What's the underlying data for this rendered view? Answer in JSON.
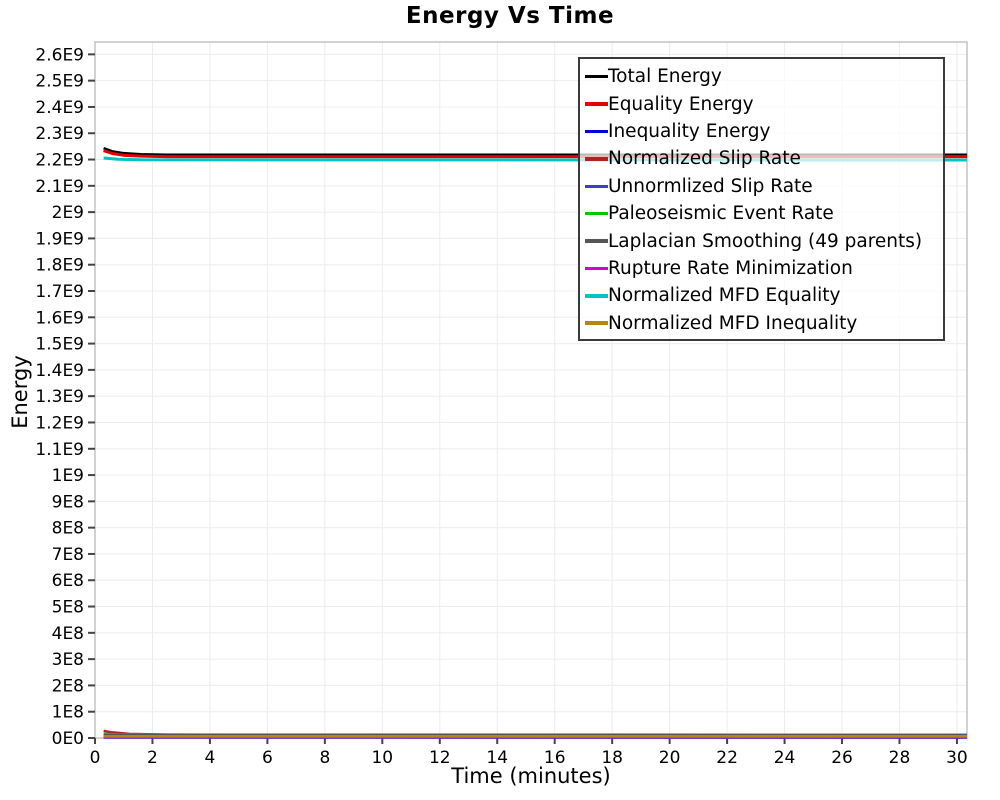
{
  "chart_data": {
    "type": "line",
    "title": "Energy Vs Time",
    "xlabel": "Time (minutes)",
    "ylabel": "Energy",
    "xlim": [
      0,
      30.35
    ],
    "ylim": [
      0,
      2647000000.0
    ],
    "grid": true,
    "legend_position": "inside-top-right",
    "x_ticks": {
      "values": [
        0,
        2,
        4,
        6,
        8,
        10,
        12,
        14,
        16,
        18,
        20,
        22,
        24,
        26,
        28,
        30
      ],
      "labels": [
        "0",
        "2",
        "4",
        "6",
        "8",
        "10",
        "12",
        "14",
        "16",
        "18",
        "20",
        "22",
        "24",
        "26",
        "28",
        "30"
      ]
    },
    "y_ticks": {
      "values": [
        0,
        100000000.0,
        200000000.0,
        300000000.0,
        400000000.0,
        500000000.0,
        600000000.0,
        700000000.0,
        800000000.0,
        900000000.0,
        1000000000.0,
        1100000000.0,
        1200000000.0,
        1300000000.0,
        1400000000.0,
        1500000000.0,
        1600000000.0,
        1700000000.0,
        1800000000.0,
        1900000000.0,
        2000000000.0,
        2100000000.0,
        2200000000.0,
        2300000000.0,
        2400000000.0,
        2500000000.0,
        2600000000.0
      ],
      "labels": [
        "0E0",
        "1E8",
        "2E8",
        "3E8",
        "4E8",
        "5E8",
        "6E8",
        "7E8",
        "8E8",
        "9E8",
        "1E9",
        "1.1E9",
        "1.2E9",
        "1.3E9",
        "1.4E9",
        "1.5E9",
        "1.6E9",
        "1.7E9",
        "1.8E9",
        "1.9E9",
        "2E9",
        "2.1E9",
        "2.2E9",
        "2.3E9",
        "2.4E9",
        "2.5E9",
        "2.6E9"
      ]
    },
    "series": [
      {
        "name": "Total Energy",
        "color": "#000000",
        "width": 2.6,
        "points": [
          [
            0.3,
            2243000000.0
          ],
          [
            0.6,
            2231000000.0
          ],
          [
            1.0,
            2224000000.0
          ],
          [
            1.6,
            2220000000.0
          ],
          [
            2.5,
            2218000000.0
          ],
          [
            4,
            2218000000.0
          ],
          [
            30.35,
            2218000000.0
          ]
        ]
      },
      {
        "name": "Equality Energy",
        "color": "#e60000",
        "width": 3,
        "points": [
          [
            0.3,
            2234000000.0
          ],
          [
            0.6,
            2223000000.0
          ],
          [
            1.0,
            2216000000.0
          ],
          [
            1.6,
            2213000000.0
          ],
          [
            2.5,
            2211000000.0
          ],
          [
            4,
            2211000000.0
          ],
          [
            30.35,
            2211000000.0
          ]
        ]
      },
      {
        "name": "Inequality Energy",
        "color": "#0000e6",
        "width": 2.6,
        "points": [
          [
            0.3,
            3000000.0
          ],
          [
            30.35,
            2500000.0
          ]
        ]
      },
      {
        "name": "Normalized Slip Rate",
        "color": "#b22222",
        "width": 2.6,
        "points": [
          [
            0.3,
            27000000.0
          ],
          [
            0.6,
            21000000.0
          ],
          [
            1.2,
            15500000.0
          ],
          [
            2.5,
            12500000.0
          ],
          [
            5,
            11500000.0
          ],
          [
            30.35,
            11000000.0
          ]
        ]
      },
      {
        "name": "Unnormlized Slip Rate",
        "color": "#3c3cc8",
        "width": 2.6,
        "points": [
          [
            0.3,
            1800000.0
          ],
          [
            30.35,
            1500000.0
          ]
        ]
      },
      {
        "name": "Paleoseismic Event Rate",
        "color": "#00c800",
        "width": 2.6,
        "points": [
          [
            0.3,
            15500000.0
          ],
          [
            0.8,
            13500000.0
          ],
          [
            2,
            12800000.0
          ],
          [
            30.35,
            12200000.0
          ]
        ]
      },
      {
        "name": "Laplacian Smoothing (49 parents)",
        "color": "#555555",
        "width": 2.6,
        "points": [
          [
            0.3,
            10500000.0
          ],
          [
            30.35,
            10800000.0
          ]
        ]
      },
      {
        "name": "Rupture Rate Minimization",
        "color": "#d400d4",
        "width": 2.6,
        "points": [
          [
            0.3,
            4200000.0
          ],
          [
            30.35,
            4000000.0
          ]
        ]
      },
      {
        "name": "Normalized MFD Equality",
        "color": "#00c3c3",
        "width": 3,
        "points": [
          [
            0.3,
            2206000000.0
          ],
          [
            0.8,
            2201000000.0
          ],
          [
            1.6,
            2199000000.0
          ],
          [
            30.35,
            2198000000.0
          ]
        ]
      },
      {
        "name": "Normalized MFD Inequality",
        "color": "#b8860b",
        "width": 2.6,
        "points": [
          [
            0.3,
            6600000.0
          ],
          [
            30.35,
            6400000.0
          ]
        ]
      }
    ]
  }
}
